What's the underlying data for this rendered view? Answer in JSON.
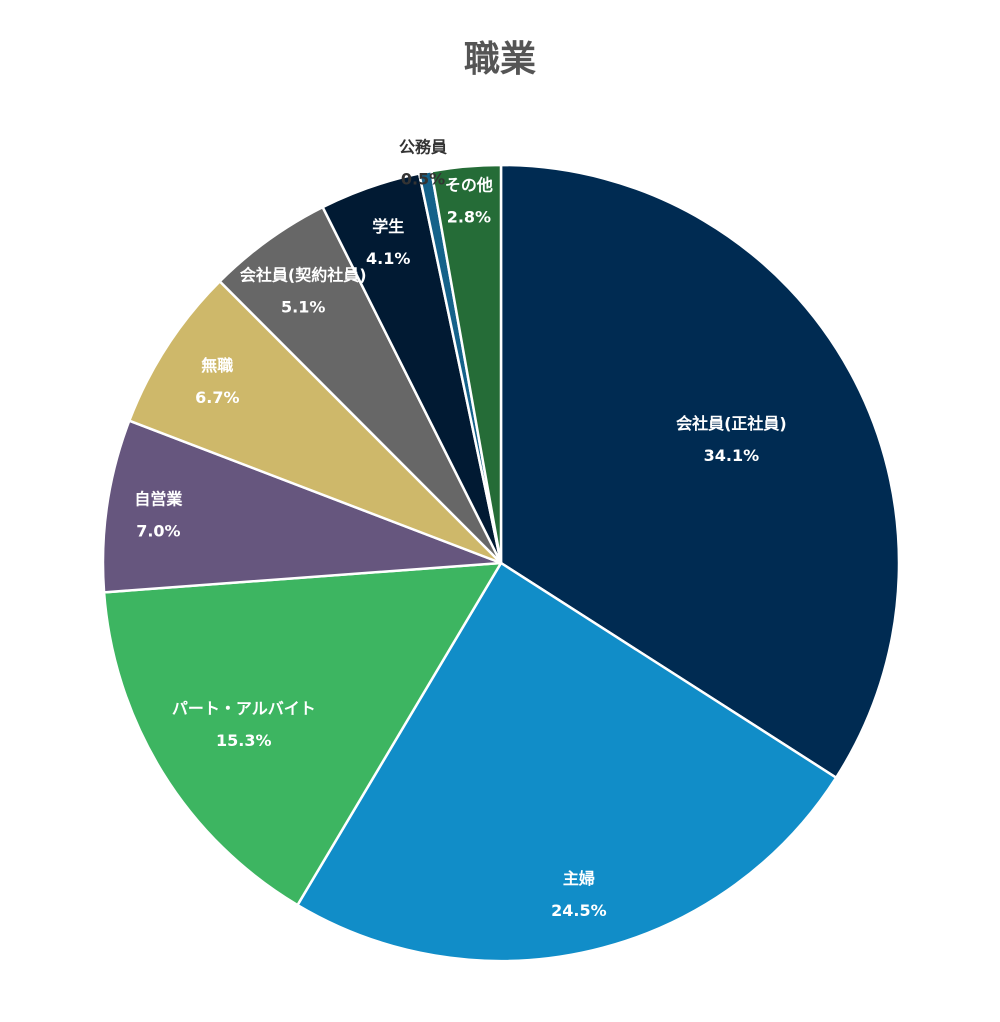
{
  "chart_data": {
    "type": "pie",
    "title": "職業",
    "slices": [
      {
        "label": "会社員(正社員)",
        "value": 34.1,
        "display": "34.1%",
        "color": "#002b52",
        "label_color": "#ffffff"
      },
      {
        "label": "主婦",
        "value": 24.5,
        "display": "24.5%",
        "color": "#118dc8",
        "label_color": "#ffffff"
      },
      {
        "label": "パート・アルバイト",
        "value": 15.3,
        "display": "15.3%",
        "color": "#3db561",
        "label_color": "#ffffff"
      },
      {
        "label": "自営業",
        "value": 7.0,
        "display": "7.0%",
        "color": "#66567e",
        "label_color": "#ffffff"
      },
      {
        "label": "無職",
        "value": 6.7,
        "display": "6.7%",
        "color": "#ceb86a",
        "label_color": "#ffffff"
      },
      {
        "label": "会社員(契約社員)",
        "value": 5.1,
        "display": "5.1%",
        "color": "#676767",
        "label_color": "#ffffff"
      },
      {
        "label": "学生",
        "value": 4.1,
        "display": "4.1%",
        "color": "#011a33",
        "label_color": "#ffffff"
      },
      {
        "label": "公務員",
        "value": 0.5,
        "display": "0.5%",
        "color": "#15628a",
        "label_color": "#333333"
      },
      {
        "label": "その他",
        "value": 2.8,
        "display": "2.8%",
        "color": "#256c37",
        "label_color": "#ffffff"
      }
    ]
  }
}
